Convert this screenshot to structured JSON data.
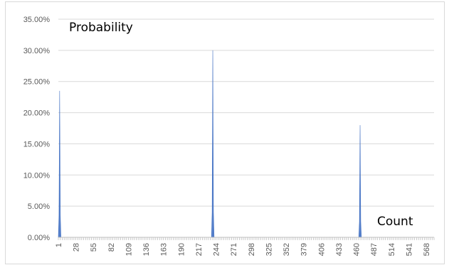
{
  "chart_data": {
    "type": "area",
    "annotations": {
      "y_note": "Probability",
      "x_note": "Count"
    },
    "y_ticks": [
      "0.00%",
      "5.00%",
      "10.00%",
      "15.00%",
      "20.00%",
      "25.00%",
      "30.00%",
      "35.00%"
    ],
    "ylim": [
      0,
      0.35
    ],
    "x_tick_labels": [
      "1",
      "28",
      "55",
      "82",
      "109",
      "136",
      "163",
      "190",
      "217",
      "244",
      "271",
      "298",
      "325",
      "352",
      "379",
      "406",
      "433",
      "460",
      "487",
      "514",
      "541",
      "568"
    ],
    "xlim": [
      1,
      580
    ],
    "grid": true,
    "legend": "none",
    "series": [
      {
        "color": "#4472c4",
        "points": [
          [
            1,
            0.0
          ],
          [
            2,
            0.035
          ],
          [
            3,
            0.235
          ],
          [
            4,
            0.035
          ],
          [
            5,
            0.0
          ],
          [
            237,
            0.0
          ],
          [
            238,
            0.04
          ],
          [
            239,
            0.3
          ],
          [
            240,
            0.04
          ],
          [
            241,
            0.0
          ],
          [
            464,
            0.0
          ],
          [
            465,
            0.025
          ],
          [
            466,
            0.18
          ],
          [
            467,
            0.025
          ],
          [
            468,
            0.0
          ]
        ]
      }
    ]
  }
}
